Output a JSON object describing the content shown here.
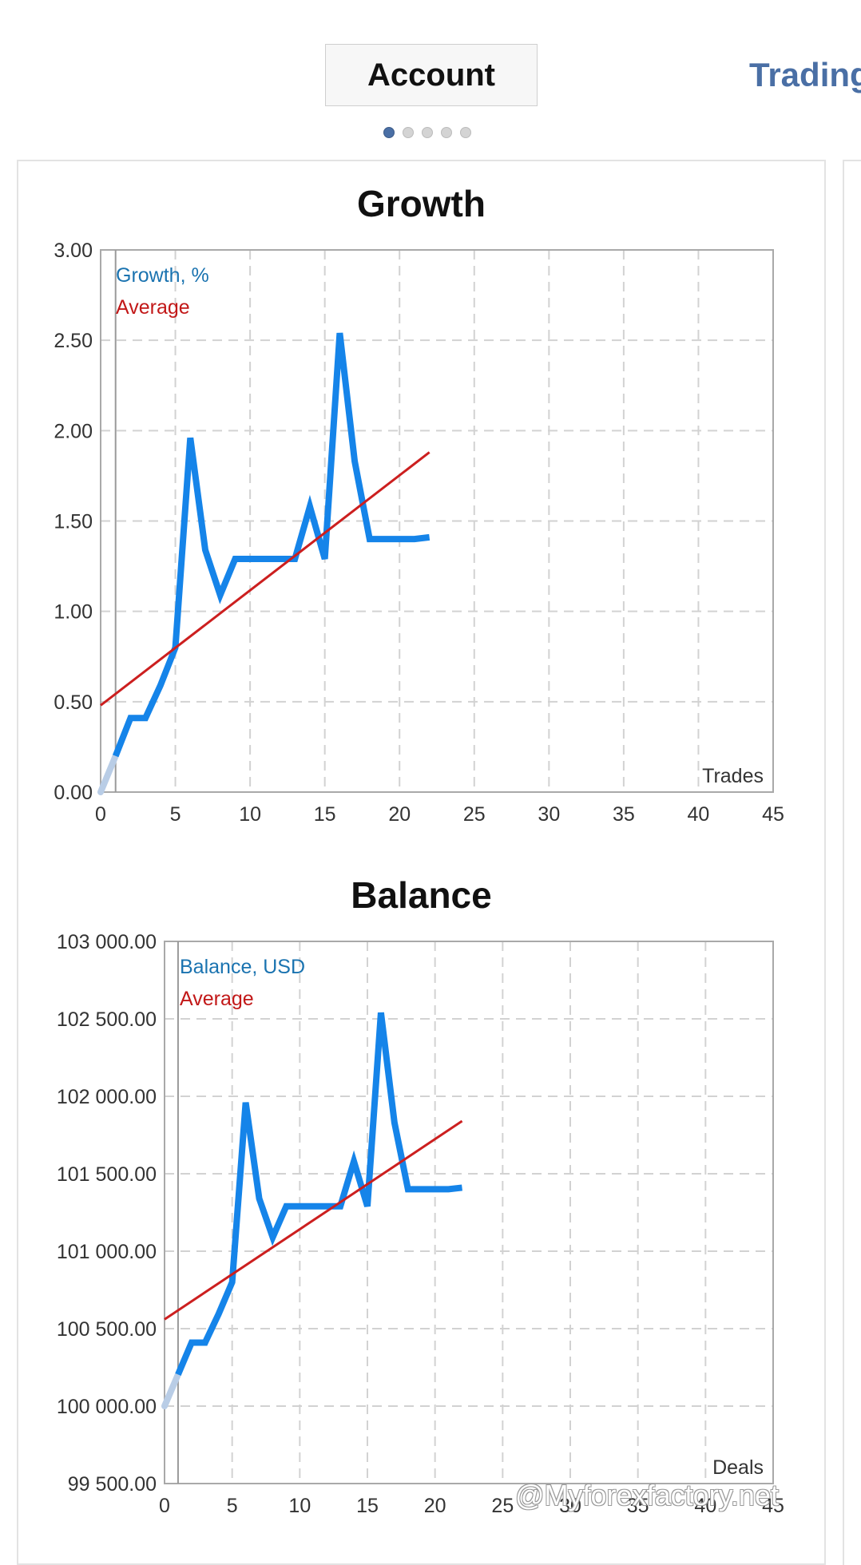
{
  "tabs": {
    "active_label": "Account",
    "next_label": "Trading"
  },
  "pager": {
    "count": 5,
    "active_index": 0
  },
  "colors": {
    "growth_line": "#1584e9",
    "average_line": "#cc1f1f",
    "start_segment": "#b9cde6",
    "legend_growth": "#1a73b0",
    "legend_average": "#c21818",
    "grid": "#d2d2d2",
    "frame": "#a9a9a9"
  },
  "watermark": "@Myforexfactory.net",
  "chart_data": [
    {
      "type": "line",
      "title": "Growth",
      "xlabel": "Trades",
      "legend": [
        "Growth, %",
        "Average"
      ],
      "xlim": [
        0,
        45
      ],
      "ylim": [
        0,
        3
      ],
      "x_ticks": [
        0,
        5,
        10,
        15,
        20,
        25,
        30,
        35,
        40,
        45
      ],
      "y_ticks": [
        0,
        0.5,
        1,
        1.5,
        2,
        2.5,
        3
      ],
      "y_tick_labels": [
        "0.00",
        "0.50",
        "1.00",
        "1.50",
        "2.00",
        "2.50",
        "3.00"
      ],
      "grid": true,
      "legend_position": "top-left",
      "series": [
        {
          "name": "Growth, %",
          "x": [
            0,
            1,
            2,
            3,
            4,
            5,
            6,
            7,
            8,
            9,
            10,
            11,
            12,
            13,
            14,
            15,
            16,
            17,
            18,
            19,
            20,
            21,
            22
          ],
          "values": [
            0,
            0.2,
            0.41,
            0.41,
            0.59,
            0.8,
            1.96,
            1.34,
            1.09,
            1.29,
            1.29,
            1.29,
            1.29,
            1.29,
            1.58,
            1.29,
            2.54,
            1.83,
            1.4,
            1.4,
            1.4,
            1.4,
            1.41
          ]
        },
        {
          "name": "Average",
          "x": [
            0,
            22
          ],
          "values": [
            0.48,
            1.88
          ]
        }
      ]
    },
    {
      "type": "line",
      "title": "Balance",
      "xlabel": "Deals",
      "legend": [
        "Balance, USD",
        "Average"
      ],
      "xlim": [
        0,
        45
      ],
      "ylim": [
        99500,
        103000
      ],
      "x_ticks": [
        0,
        5,
        10,
        15,
        20,
        25,
        30,
        35,
        40,
        45
      ],
      "y_ticks": [
        99500,
        100000,
        100500,
        101000,
        101500,
        102000,
        102500,
        103000
      ],
      "y_tick_labels": [
        "99 500.00",
        "100 000.00",
        "100 500.00",
        "101 000.00",
        "101 500.00",
        "102 000.00",
        "102 500.00",
        "103 000.00"
      ],
      "grid": true,
      "legend_position": "top-left",
      "series": [
        {
          "name": "Balance, USD",
          "x": [
            0,
            1,
            2,
            3,
            4,
            5,
            6,
            7,
            8,
            9,
            10,
            11,
            12,
            13,
            14,
            15,
            16,
            17,
            18,
            19,
            20,
            21,
            22
          ],
          "values": [
            100000,
            100204,
            100410,
            100410,
            100595,
            100800,
            101960,
            101340,
            101090,
            101290,
            101290,
            101290,
            101290,
            101290,
            101580,
            101290,
            102540,
            101830,
            101400,
            101400,
            101400,
            101400,
            101410
          ]
        },
        {
          "name": "Average",
          "x": [
            0,
            22
          ],
          "values": [
            100560,
            101840
          ]
        }
      ]
    }
  ]
}
